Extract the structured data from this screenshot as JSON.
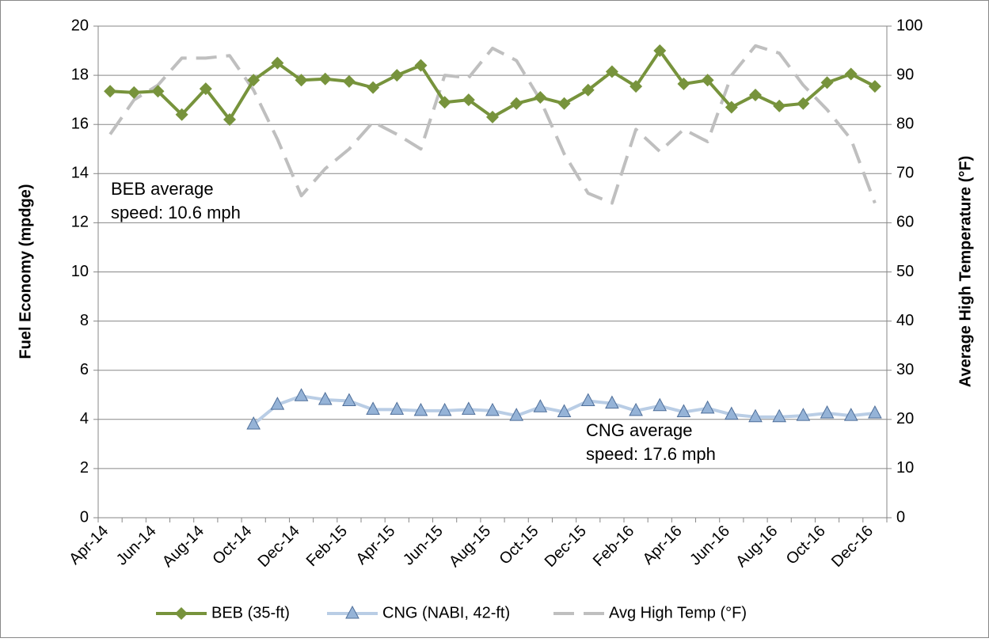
{
  "chart_data": {
    "type": "line",
    "categories": [
      "Apr-14",
      null,
      "Jun-14",
      null,
      "Aug-14",
      null,
      "Oct-14",
      null,
      "Dec-14",
      null,
      "Feb-15",
      null,
      "Apr-15",
      null,
      "Jun-15",
      null,
      "Aug-15",
      null,
      "Oct-15",
      null,
      "Dec-15",
      null,
      "Feb-16",
      null,
      "Apr-16",
      null,
      "Jun-16",
      null,
      "Aug-16",
      null,
      "Oct-16",
      null,
      "Dec-16"
    ],
    "ylabel": "Fuel Economy (mpdge)",
    "y2label": "Average High Temperature (°F)",
    "ylim": [
      0,
      20
    ],
    "yticks": [
      0,
      2,
      4,
      6,
      8,
      10,
      12,
      14,
      16,
      18,
      20
    ],
    "y2lim": [
      0,
      100
    ],
    "y2ticks": [
      0,
      10,
      20,
      30,
      40,
      50,
      60,
      70,
      80,
      90,
      100
    ],
    "grid": true,
    "legend": "bottom",
    "series": [
      {
        "name": "BEB (35-ft)",
        "color": "#77933c",
        "marker": "diamond",
        "values": [
          17.35,
          17.3,
          17.35,
          16.4,
          17.45,
          16.2,
          17.8,
          18.5,
          17.8,
          17.85,
          17.75,
          17.5,
          18.0,
          18.4,
          16.9,
          17.0,
          16.3,
          16.85,
          17.1,
          16.85,
          17.4,
          18.15,
          17.55,
          19.0,
          17.65,
          17.8,
          16.7,
          17.2,
          16.75,
          16.85,
          17.7,
          18.05,
          17.55
        ]
      },
      {
        "name": "CNG (NABI, 42-ft)",
        "color": "#b9cde5",
        "marker_color": "#95b3d7",
        "marker": "triangle",
        "values": [
          null,
          null,
          null,
          null,
          null,
          null,
          3.8,
          4.6,
          4.95,
          4.8,
          4.75,
          4.4,
          4.4,
          4.35,
          4.35,
          4.4,
          4.35,
          4.15,
          4.5,
          4.3,
          4.75,
          4.65,
          4.35,
          4.55,
          4.3,
          4.45,
          4.2,
          4.1,
          4.1,
          4.15,
          4.25,
          4.15,
          4.25
        ]
      },
      {
        "name": "Avg High Temp (°F)",
        "color": "#bfbfbf",
        "style": "dashed",
        "axis": "y2",
        "values": [
          78,
          85,
          88,
          93.5,
          93.5,
          94,
          87,
          77,
          65.5,
          71,
          75,
          80.5,
          78,
          75,
          90,
          89.5,
          95.5,
          93,
          85,
          74,
          66,
          64,
          79,
          74.5,
          79,
          76.5,
          90,
          96,
          94.5,
          88,
          83,
          77,
          64
        ]
      }
    ],
    "annotations": [
      {
        "lines": [
          "BEB average",
          "speed: 10.6 mph"
        ],
        "color": "#77933c"
      },
      {
        "lines": [
          "CNG average",
          "speed: 17.6 mph"
        ],
        "color": "#b9cde5"
      }
    ]
  }
}
